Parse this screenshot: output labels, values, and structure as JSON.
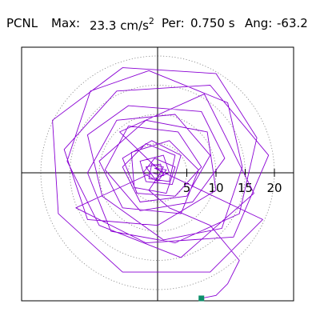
{
  "header": {
    "station": "PCNL",
    "max_label": "Max:",
    "max_value": "23.3",
    "max_unit": "cm/s",
    "max_unit_exp": "2",
    "per_label": "Per:",
    "per_value": "0.750 s",
    "ang_label": "Ang:",
    "ang_value": "-63.2"
  },
  "colors": {
    "trace": "#8a00d4",
    "end_marker": "#0c8f6a",
    "grid": "#808080",
    "axis": "#000000",
    "frame": "#000000"
  },
  "chart_data": {
    "type": "polar-hodogram",
    "x_unit": "cm/s2",
    "y_unit": "cm/s2",
    "radial_ticks": [
      5,
      10,
      15,
      20
    ],
    "radial_tick_labels": [
      "5",
      "10",
      "15",
      "20"
    ],
    "grid_rings": [
      5,
      10,
      15,
      20
    ],
    "grid_style": "dotted",
    "axes": [
      "horizontal",
      "vertical"
    ],
    "trace_points": [
      [
        0.5,
        0.2
      ],
      [
        -6.5,
        7.0
      ],
      [
        8.0,
        13.5
      ],
      [
        16.5,
        -3.5
      ],
      [
        4.0,
        -14.5
      ],
      [
        -10.0,
        -9.0
      ],
      [
        -15.5,
        2.0
      ],
      [
        -11.5,
        14.0
      ],
      [
        -1.5,
        17.5
      ],
      [
        12.0,
        12.0
      ],
      [
        14.5,
        1.0
      ],
      [
        11.0,
        -9.5
      ],
      [
        1.0,
        -11.5
      ],
      [
        -9.5,
        -4.0
      ],
      [
        -12.0,
        6.5
      ],
      [
        -5.0,
        11.5
      ],
      [
        7.5,
        10.5
      ],
      [
        11.5,
        2.5
      ],
      [
        6.0,
        -5.0
      ],
      [
        -3.0,
        -6.5
      ],
      [
        -9.0,
        0.5
      ],
      [
        -5.0,
        8.0
      ],
      [
        3.5,
        7.0
      ],
      [
        7.5,
        1.0
      ],
      [
        3.0,
        -4.0
      ],
      [
        -3.5,
        -3.5
      ],
      [
        -6.0,
        2.5
      ],
      [
        -1.0,
        5.5
      ],
      [
        4.0,
        3.0
      ],
      [
        2.5,
        -2.0
      ],
      [
        -2.0,
        -1.5
      ],
      [
        -3.0,
        2.0
      ],
      [
        1.0,
        3.0
      ],
      [
        2.0,
        0.0
      ],
      [
        -0.5,
        -1.0
      ],
      [
        -2.0,
        1.0
      ],
      [
        0.5,
        1.5
      ],
      [
        1.0,
        -0.5
      ],
      [
        -1.0,
        0.0
      ],
      [
        -14.0,
        -6.0
      ],
      [
        -2.0,
        -12.0
      ],
      [
        13.0,
        -11.0
      ],
      [
        19.0,
        3.0
      ],
      [
        9.0,
        15.0
      ],
      [
        -7.0,
        14.0
      ],
      [
        -16.0,
        4.0
      ],
      [
        -12.0,
        -8.0
      ],
      [
        0.0,
        -9.0
      ],
      [
        10.0,
        -3.0
      ],
      [
        8.5,
        7.0
      ],
      [
        -2.0,
        9.0
      ],
      [
        -10.0,
        2.0
      ],
      [
        -6.0,
        -6.0
      ],
      [
        4.0,
        -7.0
      ],
      [
        7.0,
        0.5
      ],
      [
        2.0,
        5.5
      ],
      [
        -4.5,
        3.5
      ],
      [
        -4.0,
        -2.5
      ],
      [
        1.5,
        -3.5
      ],
      [
        3.0,
        1.0
      ],
      [
        -0.5,
        2.5
      ],
      [
        -2.5,
        0.0
      ],
      [
        0.0,
        -1.5
      ],
      [
        1.5,
        0.5
      ],
      [
        -0.5,
        0.8
      ],
      [
        18.0,
        -8.0
      ],
      [
        9.0,
        -17.0
      ],
      [
        -6.0,
        -17.0
      ],
      [
        -17.0,
        -7.0
      ],
      [
        -18.0,
        9.0
      ],
      [
        -6.0,
        18.0
      ],
      [
        10.0,
        17.0
      ],
      [
        17.0,
        6.0
      ],
      [
        14.0,
        -7.0
      ],
      [
        3.0,
        -12.0
      ],
      [
        -8.0,
        -10.0
      ],
      [
        -12.0,
        0.0
      ],
      [
        -7.0,
        9.0
      ],
      [
        3.0,
        10.0
      ],
      [
        9.0,
        3.0
      ],
      [
        5.0,
        -4.0
      ],
      [
        -3.0,
        -5.0
      ],
      [
        -6.0,
        1.0
      ],
      [
        -2.0,
        5.0
      ],
      [
        3.0,
        3.0
      ],
      [
        2.0,
        -1.5
      ],
      [
        -1.5,
        -1.0
      ],
      [
        -1.0,
        1.5
      ],
      [
        1.0,
        1.0
      ],
      [
        0.3,
        -0.3
      ],
      [
        -1.5,
        -3.0
      ],
      [
        2.0,
        -6.0
      ],
      [
        9.0,
        -9.0
      ],
      [
        14.0,
        -15.0
      ],
      [
        12.0,
        -19.0
      ],
      [
        10.0,
        -21.0
      ],
      [
        7.5,
        -21.5
      ]
    ],
    "end_point": [
      7.5,
      -21.5
    ]
  }
}
